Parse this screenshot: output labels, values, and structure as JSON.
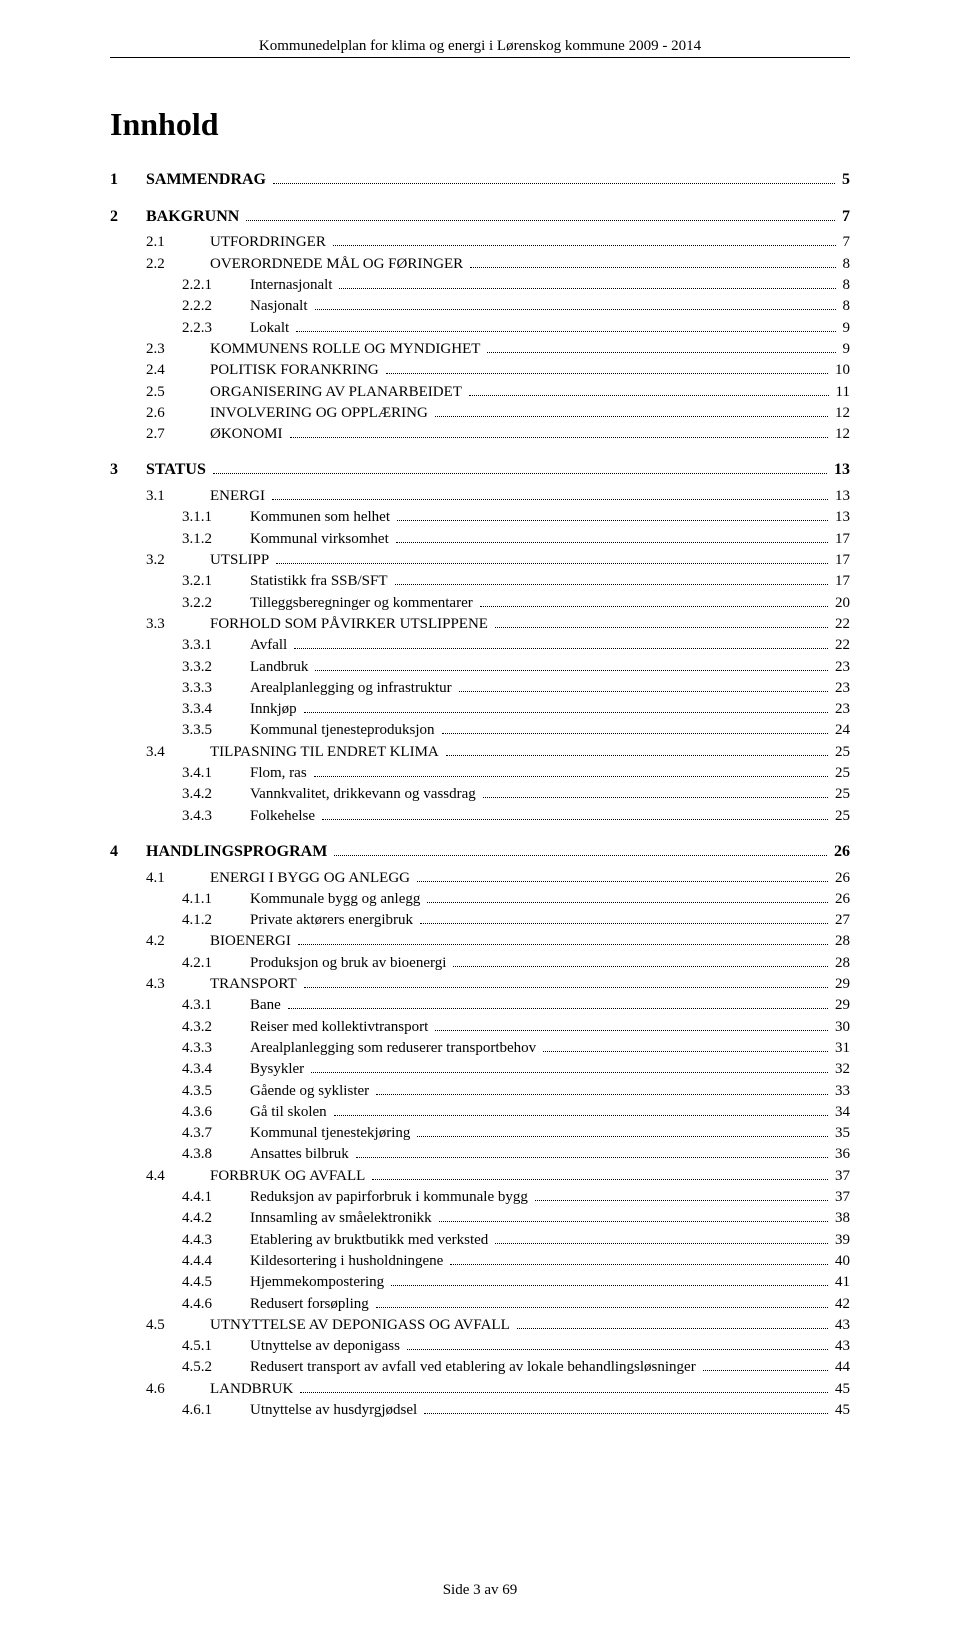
{
  "header": "Kommunedelplan for klima og energi i Lørenskog kommune 2009 - 2014",
  "title": "Innhold",
  "footer": "Side 3 av 69",
  "toc": [
    {
      "level": 1,
      "num": "1",
      "label": "SAMMENDRAG",
      "page": "5"
    },
    {
      "level": 1,
      "num": "2",
      "label": "BAKGRUNN",
      "page": "7"
    },
    {
      "level": 2,
      "num": "2.1",
      "label": "UTFORDRINGER",
      "smallcaps": true,
      "page": "7"
    },
    {
      "level": 2,
      "num": "2.2",
      "label": "OVERORDNEDE MÅL OG FØRINGER",
      "smallcaps": true,
      "page": "8"
    },
    {
      "level": 3,
      "num": "2.2.1",
      "label": "Internasjonalt",
      "page": "8"
    },
    {
      "level": 3,
      "num": "2.2.2",
      "label": "Nasjonalt",
      "page": "8"
    },
    {
      "level": 3,
      "num": "2.2.3",
      "label": "Lokalt",
      "page": "9"
    },
    {
      "level": 2,
      "num": "2.3",
      "label": "KOMMUNENS ROLLE OG MYNDIGHET",
      "smallcaps": true,
      "page": "9"
    },
    {
      "level": 2,
      "num": "2.4",
      "label": "POLITISK FORANKRING",
      "smallcaps": true,
      "page": "10"
    },
    {
      "level": 2,
      "num": "2.5",
      "label": "ORGANISERING AV PLANARBEIDET",
      "smallcaps": true,
      "page": "11"
    },
    {
      "level": 2,
      "num": "2.6",
      "label": "INVOLVERING OG OPPLÆRING",
      "smallcaps": true,
      "page": "12"
    },
    {
      "level": 2,
      "num": "2.7",
      "label": "ØKONOMI",
      "smallcaps": true,
      "page": "12"
    },
    {
      "level": 1,
      "num": "3",
      "label": "STATUS",
      "page": "13"
    },
    {
      "level": 2,
      "num": "3.1",
      "label": "ENERGI",
      "smallcaps": true,
      "page": "13"
    },
    {
      "level": 3,
      "num": "3.1.1",
      "label": "Kommunen som helhet",
      "page": "13"
    },
    {
      "level": 3,
      "num": "3.1.2",
      "label": "Kommunal virksomhet",
      "page": "17"
    },
    {
      "level": 2,
      "num": "3.2",
      "label": "UTSLIPP",
      "smallcaps": true,
      "page": "17"
    },
    {
      "level": 3,
      "num": "3.2.1",
      "label": "Statistikk fra SSB/SFT",
      "page": "17"
    },
    {
      "level": 3,
      "num": "3.2.2",
      "label": "Tilleggsberegninger og kommentarer",
      "page": "20"
    },
    {
      "level": 2,
      "num": "3.3",
      "label": "FORHOLD SOM PÅVIRKER UTSLIPPENE",
      "smallcaps": true,
      "page": "22"
    },
    {
      "level": 3,
      "num": "3.3.1",
      "label": "Avfall",
      "page": "22"
    },
    {
      "level": 3,
      "num": "3.3.2",
      "label": "Landbruk",
      "page": "23"
    },
    {
      "level": 3,
      "num": "3.3.3",
      "label": "Arealplanlegging og infrastruktur",
      "page": "23"
    },
    {
      "level": 3,
      "num": "3.3.4",
      "label": "Innkjøp",
      "page": "23"
    },
    {
      "level": 3,
      "num": "3.3.5",
      "label": "Kommunal tjenesteproduksjon",
      "page": "24"
    },
    {
      "level": 2,
      "num": "3.4",
      "label": "TILPASNING TIL ENDRET KLIMA",
      "smallcaps": true,
      "page": "25"
    },
    {
      "level": 3,
      "num": "3.4.1",
      "label": "Flom, ras",
      "page": "25"
    },
    {
      "level": 3,
      "num": "3.4.2",
      "label": "Vannkvalitet, drikkevann og vassdrag",
      "page": "25"
    },
    {
      "level": 3,
      "num": "3.4.3",
      "label": "Folkehelse",
      "page": "25"
    },
    {
      "level": 1,
      "num": "4",
      "label": "HANDLINGSPROGRAM",
      "page": "26"
    },
    {
      "level": 2,
      "num": "4.1",
      "label": "ENERGI I BYGG OG ANLEGG",
      "smallcaps": true,
      "page": "26"
    },
    {
      "level": 3,
      "num": "4.1.1",
      "label": "Kommunale bygg og anlegg",
      "page": "26"
    },
    {
      "level": 3,
      "num": "4.1.2",
      "label": "Private aktørers energibruk",
      "page": "27"
    },
    {
      "level": 2,
      "num": "4.2",
      "label": "BIOENERGI",
      "smallcaps": true,
      "page": "28"
    },
    {
      "level": 3,
      "num": "4.2.1",
      "label": "Produksjon og bruk av bioenergi",
      "page": "28"
    },
    {
      "level": 2,
      "num": "4.3",
      "label": "TRANSPORT",
      "smallcaps": true,
      "page": "29"
    },
    {
      "level": 3,
      "num": "4.3.1",
      "label": "Bane",
      "page": "29"
    },
    {
      "level": 3,
      "num": "4.3.2",
      "label": "Reiser med kollektivtransport",
      "page": "30"
    },
    {
      "level": 3,
      "num": "4.3.3",
      "label": "Arealplanlegging som reduserer transportbehov",
      "page": "31"
    },
    {
      "level": 3,
      "num": "4.3.4",
      "label": "Bysykler",
      "page": "32"
    },
    {
      "level": 3,
      "num": "4.3.5",
      "label": "Gående og syklister",
      "page": "33"
    },
    {
      "level": 3,
      "num": "4.3.6",
      "label": "Gå til skolen",
      "page": "34"
    },
    {
      "level": 3,
      "num": "4.3.7",
      "label": "Kommunal tjenestekjøring",
      "page": "35"
    },
    {
      "level": 3,
      "num": "4.3.8",
      "label": "Ansattes bilbruk",
      "page": "36"
    },
    {
      "level": 2,
      "num": "4.4",
      "label": "FORBRUK OG AVFALL",
      "smallcaps": true,
      "page": "37"
    },
    {
      "level": 3,
      "num": "4.4.1",
      "label": "Reduksjon av papirforbruk i kommunale bygg",
      "page": "37"
    },
    {
      "level": 3,
      "num": "4.4.2",
      "label": "Innsamling av småelektronikk",
      "page": "38"
    },
    {
      "level": 3,
      "num": "4.4.3",
      "label": "Etablering av bruktbutikk med verksted",
      "page": "39"
    },
    {
      "level": 3,
      "num": "4.4.4",
      "label": "Kildesortering i husholdningene",
      "page": "40"
    },
    {
      "level": 3,
      "num": "4.4.5",
      "label": "Hjemmekompostering",
      "page": "41"
    },
    {
      "level": 3,
      "num": "4.4.6",
      "label": "Redusert forsøpling",
      "page": "42"
    },
    {
      "level": 2,
      "num": "4.5",
      "label": "UTNYTTELSE AV DEPONIGASS OG AVFALL",
      "smallcaps": true,
      "page": "43"
    },
    {
      "level": 3,
      "num": "4.5.1",
      "label": "Utnyttelse av deponigass",
      "page": "43"
    },
    {
      "level": 3,
      "num": "4.5.2",
      "label": "Redusert transport av avfall ved etablering av lokale behandlingsløsninger",
      "page": "44"
    },
    {
      "level": 2,
      "num": "4.6",
      "label": "LANDBRUK",
      "smallcaps": true,
      "page": "45"
    },
    {
      "level": 3,
      "num": "4.6.1",
      "label": "Utnyttelse av husdyrgjødsel",
      "page": "45"
    }
  ]
}
